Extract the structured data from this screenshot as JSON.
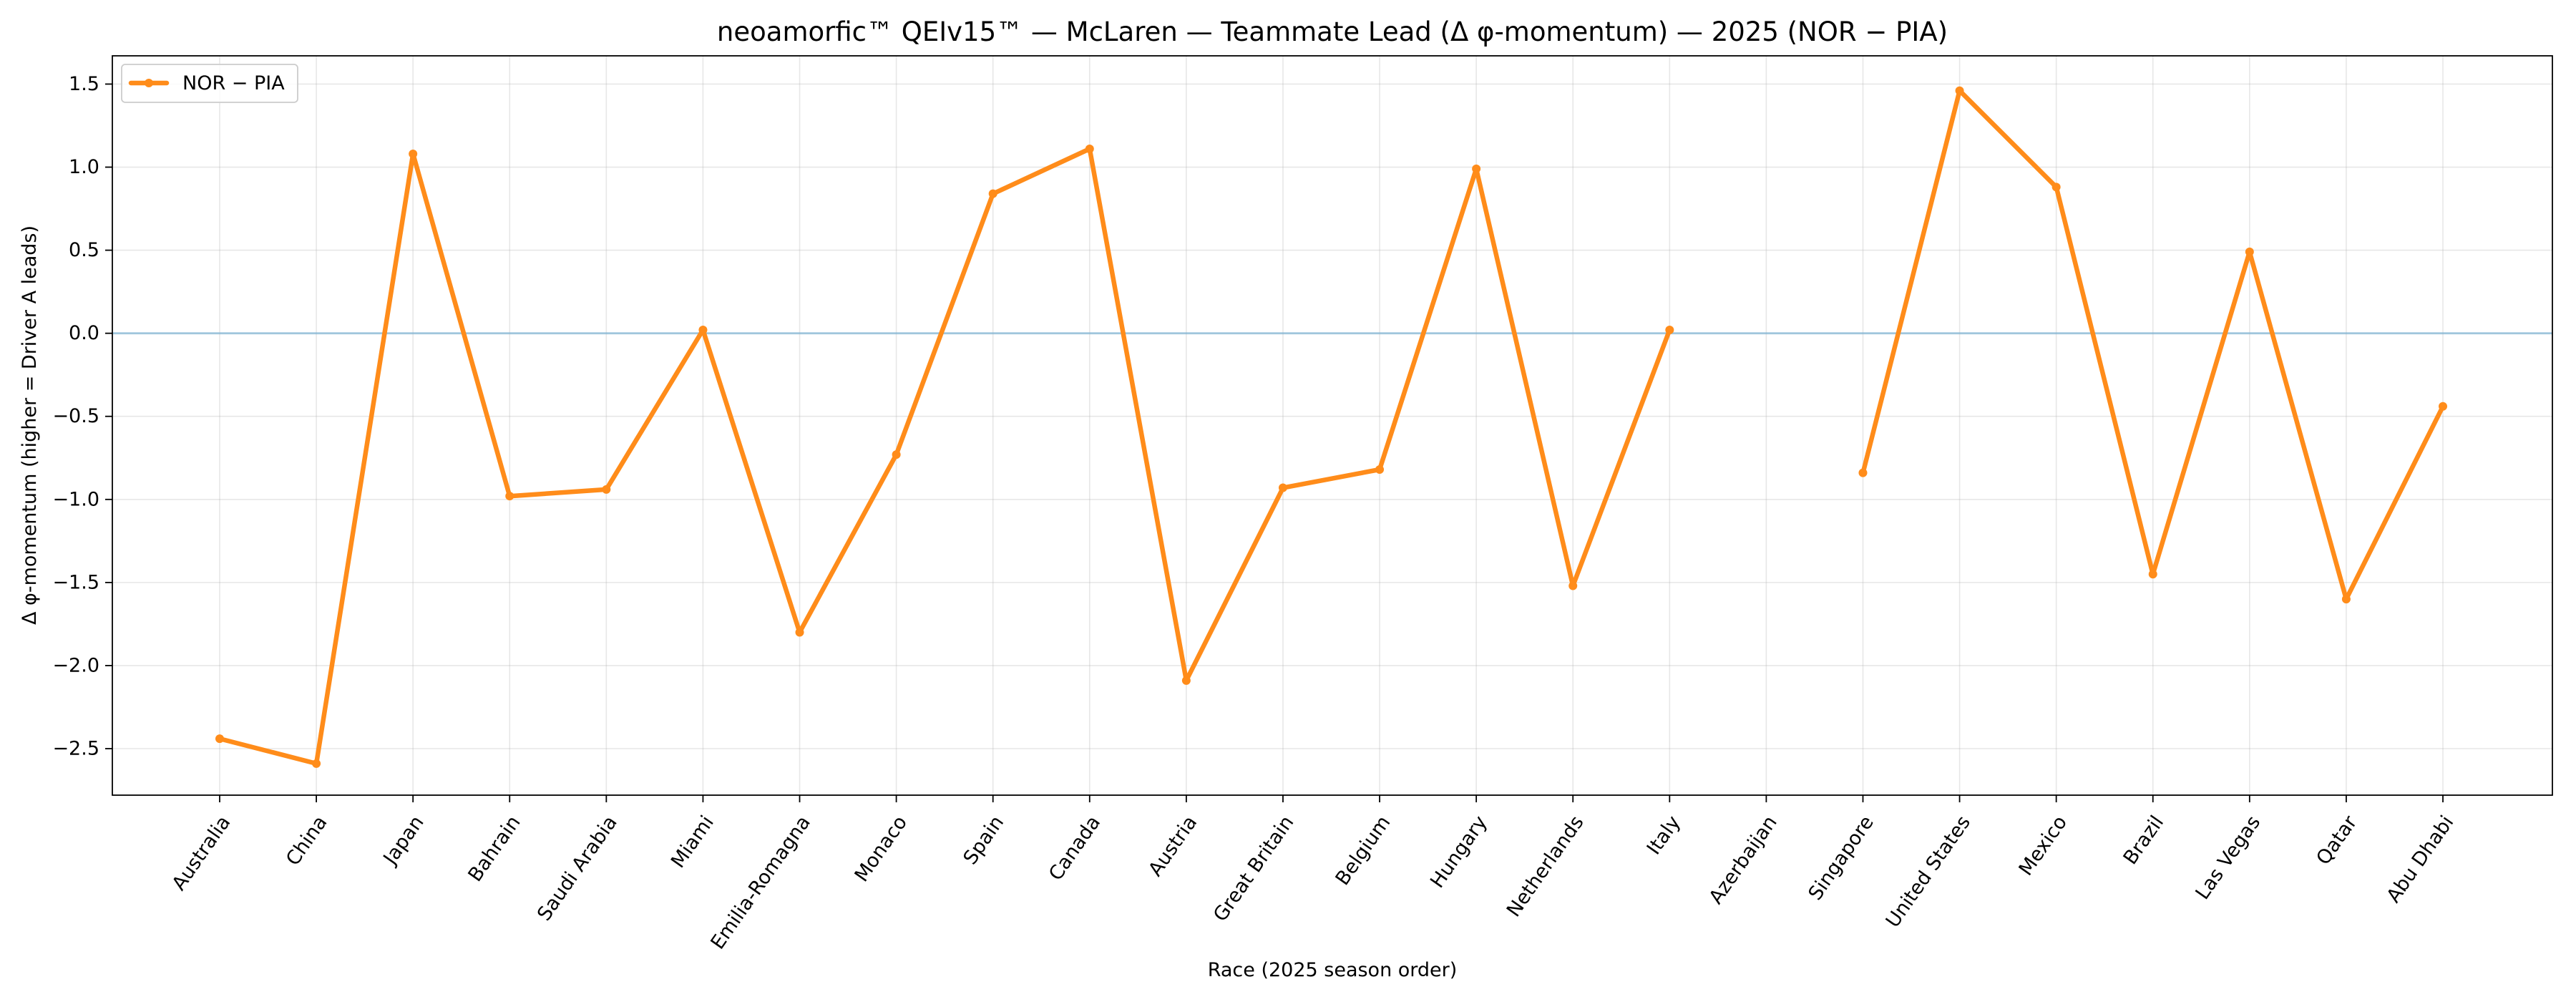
{
  "chart_data": {
    "type": "line",
    "title": "neoamorfic™  QEIv15™ — McLaren — Teammate Lead (Δ φ-momentum) — 2025 (NOR − PIA)",
    "xlabel": "Race (2025 season order)",
    "ylabel": "Δ φ-momentum (higher = Driver A leads)",
    "categories": [
      "Australia",
      "China",
      "Japan",
      "Bahrain",
      "Saudi Arabia",
      "Miami",
      "Emilia-Romagna",
      "Monaco",
      "Spain",
      "Canada",
      "Austria",
      "Great Britain",
      "Belgium",
      "Hungary",
      "Netherlands",
      "Italy",
      "Azerbaijan",
      "Singapore",
      "United States",
      "Mexico",
      "Brazil",
      "Las Vegas",
      "Qatar",
      "Abu Dhabi"
    ],
    "ylim": [
      -2.78,
      1.67
    ],
    "yticks": [
      -2.5,
      -2.0,
      -1.5,
      -1.0,
      -0.5,
      0.0,
      0.5,
      1.0,
      1.5
    ],
    "ytick_labels": [
      "−2.5",
      "−2.0",
      "−1.5",
      "−1.0",
      "−0.5",
      "0.0",
      "0.5",
      "1.0",
      "1.5"
    ],
    "grid": true,
    "reference_line": {
      "y": 0.0,
      "color": "#7fb5d5"
    },
    "legend": {
      "placement": "top-left"
    },
    "series": [
      {
        "name": "NOR − PIA",
        "color": "#ff8c1a",
        "values": [
          -2.44,
          -2.59,
          1.08,
          -0.98,
          -0.94,
          0.02,
          -1.8,
          -0.73,
          0.84,
          1.11,
          -2.09,
          -0.93,
          -0.82,
          0.99,
          -1.52,
          0.02,
          null,
          -0.84,
          1.46,
          0.88,
          -1.45,
          0.49,
          -1.6,
          -0.44
        ]
      }
    ]
  }
}
